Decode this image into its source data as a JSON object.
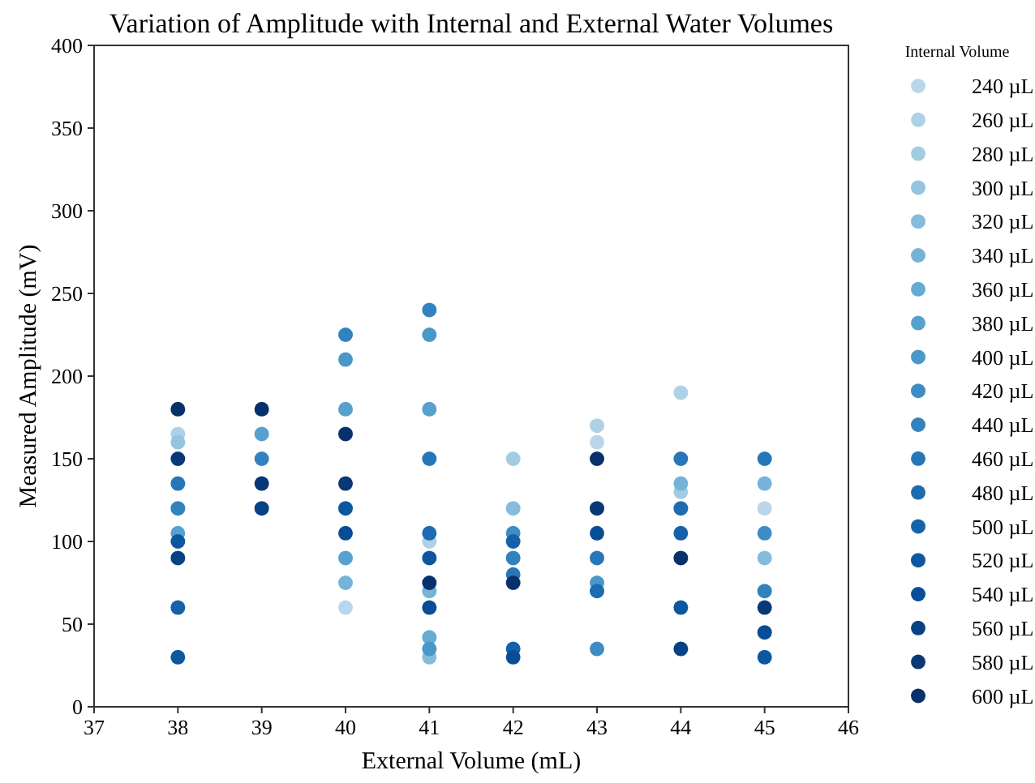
{
  "chart_data": {
    "type": "scatter",
    "title": "Variation of Amplitude with Internal and External Water Volumes",
    "xlabel": "External Volume (mL)",
    "ylabel": "Measured Amplitude (mV)",
    "legend_title": "Internal Volume",
    "legend": "right",
    "marker": "circle",
    "grid": false,
    "xlim": [
      37,
      46
    ],
    "xticks": [
      37,
      38,
      39,
      40,
      41,
      42,
      43,
      44,
      45,
      46
    ],
    "ylim": [
      0,
      400
    ],
    "yticks": [
      0,
      50,
      100,
      150,
      200,
      250,
      300,
      350,
      400
    ],
    "series": [
      {
        "name": "240 µL",
        "color": "#bad6eb",
        "x": [
          40,
          43,
          45
        ],
        "values": [
          60,
          160,
          120
        ]
      },
      {
        "name": "260 µL",
        "color": "#afd1e7",
        "x": [
          38,
          41,
          43,
          44
        ],
        "values": [
          165,
          100,
          170,
          190
        ]
      },
      {
        "name": "280 µL",
        "color": "#a3cce3",
        "x": [
          42,
          44
        ],
        "values": [
          150,
          130
        ]
      },
      {
        "name": "300 µL",
        "color": "#94c4df",
        "x": [
          38
        ],
        "values": [
          160
        ]
      },
      {
        "name": "320 µL",
        "color": "#85bcdc",
        "x": [
          42,
          41,
          45
        ],
        "values": [
          120,
          30,
          90
        ]
      },
      {
        "name": "340 µL",
        "color": "#75b4d8",
        "x": [
          40,
          41,
          44,
          45
        ],
        "values": [
          75,
          70,
          135,
          135
        ]
      },
      {
        "name": "360 µL",
        "color": "#66abd4",
        "x": [
          41
        ],
        "values": [
          42
        ]
      },
      {
        "name": "380 µL",
        "color": "#58a1cf",
        "x": [
          38,
          39,
          40,
          40,
          41
        ],
        "values": [
          105,
          165,
          180,
          90,
          180
        ]
      },
      {
        "name": "400 µL",
        "color": "#4a98c9",
        "x": [
          40,
          41,
          41,
          43
        ],
        "values": [
          210,
          225,
          35,
          75
        ]
      },
      {
        "name": "420 µL",
        "color": "#3d8dc4",
        "x": [
          42,
          43,
          45
        ],
        "values": [
          105,
          35,
          105
        ]
      },
      {
        "name": "440 µL",
        "color": "#3282be",
        "x": [
          38,
          39,
          40,
          41,
          42,
          45
        ],
        "values": [
          120,
          150,
          225,
          240,
          90,
          70
        ]
      },
      {
        "name": "460 µL",
        "color": "#2777b8",
        "x": [
          38,
          41,
          42,
          43,
          44,
          45
        ],
        "values": [
          135,
          150,
          80,
          90,
          150,
          150
        ]
      },
      {
        "name": "480 µL",
        "color": "#1d6cb1",
        "x": [
          41,
          43,
          44
        ],
        "values": [
          105,
          70,
          120
        ]
      },
      {
        "name": "500 µL",
        "color": "#1562a9",
        "x": [
          38,
          42,
          42,
          44
        ],
        "values": [
          60,
          100,
          35,
          105
        ]
      },
      {
        "name": "520 µL",
        "color": "#0d57a1",
        "x": [
          38,
          38,
          40,
          41,
          44,
          45
        ],
        "values": [
          100,
          30,
          120,
          90,
          60,
          30
        ]
      },
      {
        "name": "540 µL",
        "color": "#084d96",
        "x": [
          40,
          41,
          42,
          43,
          45
        ],
        "values": [
          105,
          60,
          30,
          105,
          45
        ]
      },
      {
        "name": "560 µL",
        "color": "#084285",
        "x": [
          38,
          39,
          44
        ],
        "values": [
          90,
          120,
          35
        ]
      },
      {
        "name": "580 µL",
        "color": "#083875",
        "x": [
          38,
          39,
          40,
          43,
          45
        ],
        "values": [
          150,
          135,
          135,
          120,
          60
        ]
      },
      {
        "name": "600 µL",
        "color": "#08306b",
        "x": [
          38,
          39,
          40,
          41,
          42,
          43,
          44
        ],
        "values": [
          180,
          180,
          165,
          75,
          75,
          150,
          90
        ]
      }
    ]
  }
}
